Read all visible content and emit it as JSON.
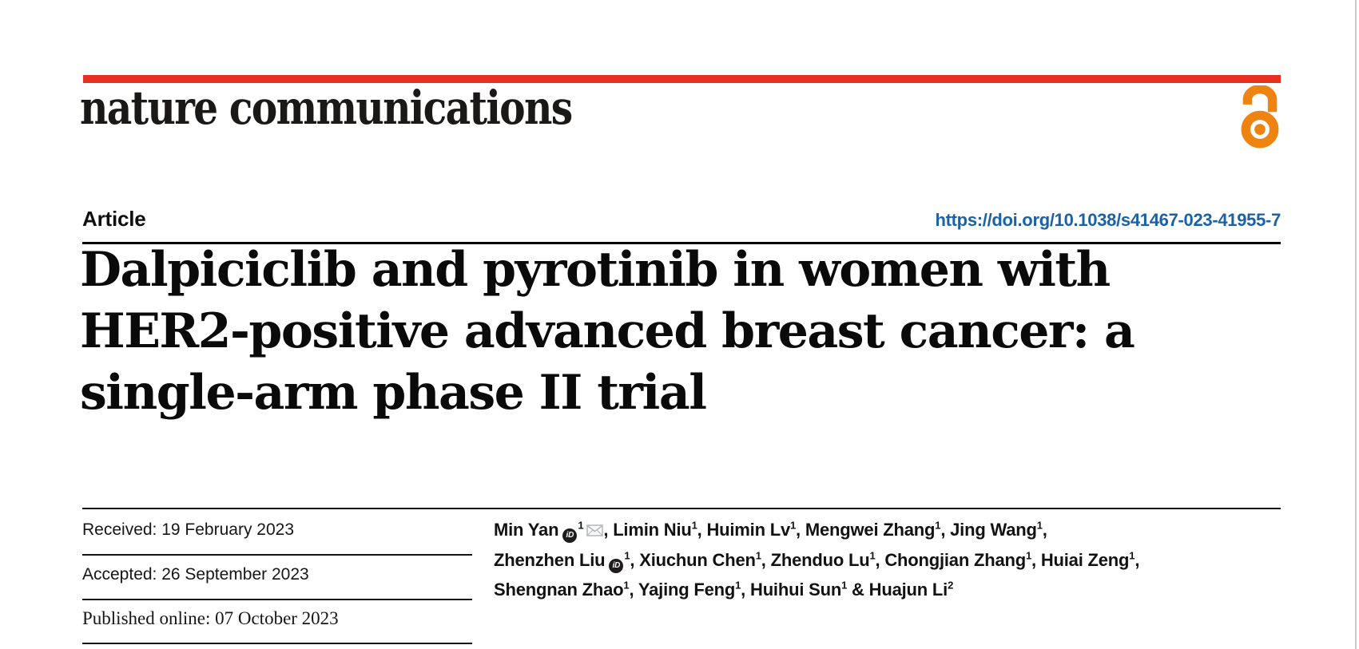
{
  "journal": {
    "name": "nature communications"
  },
  "brand_colors": {
    "masthead_red": "#e7301f",
    "open_access_orange": "#ee8312",
    "link_blue": "#1a62a8"
  },
  "header": {
    "kicker": "Article",
    "doi": "https://doi.org/10.1038/s41467-023-41955-7"
  },
  "title_lines": [
    "Dalpiciclib and pyrotinib in women with",
    "HER2-positive advanced breast cancer: a",
    "single-arm phase II trial"
  ],
  "dates": {
    "received": "Received: 19 February 2023",
    "accepted": "Accepted: 26 September 2023",
    "published": "Published online: 07 October 2023"
  },
  "icons": {
    "orcid_glyph": "iD",
    "orcid_name": "orcid-icon",
    "email_name": "envelope-icon",
    "open_access_name": "open-access-lock-icon"
  },
  "authors": [
    {
      "name": "Min Yan",
      "orcid": true,
      "sup": "1",
      "email": true,
      "sep": ", "
    },
    {
      "name": "Limin Niu",
      "sup": "1",
      "sep": ", "
    },
    {
      "name": "Huimin Lv",
      "sup": "1",
      "sep": ", "
    },
    {
      "name": "Mengwei Zhang",
      "sup": "1",
      "sep": ", "
    },
    {
      "name": "Jing Wang",
      "sup": "1",
      "sep": ",",
      "break": true
    },
    {
      "name": "Zhenzhen Liu",
      "orcid": true,
      "sup": "1",
      "sep": ", "
    },
    {
      "name": "Xiuchun Chen",
      "sup": "1",
      "sep": ", "
    },
    {
      "name": "Zhenduo Lu",
      "sup": "1",
      "sep": ", "
    },
    {
      "name": "Chongjian Zhang",
      "sup": "1",
      "sep": ", "
    },
    {
      "name": "Huiai Zeng",
      "sup": "1",
      "sep": ",",
      "break": true
    },
    {
      "name": "Shengnan Zhao",
      "sup": "1",
      "sep": ", "
    },
    {
      "name": "Yajing Feng",
      "sup": "1",
      "sep": ", "
    },
    {
      "name": "Huihui Sun",
      "sup": "1",
      "sep": " & "
    },
    {
      "name": "Huajun Li",
      "sup": "2",
      "sep": ""
    }
  ]
}
